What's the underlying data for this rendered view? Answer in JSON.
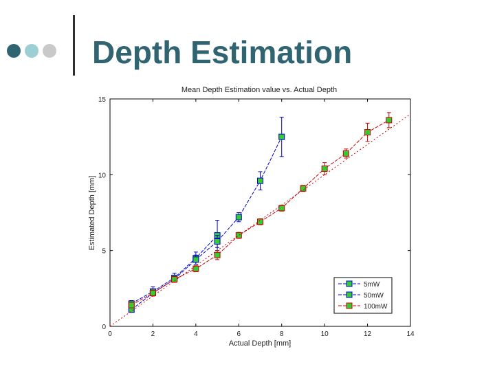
{
  "slide": {
    "title": "Depth Estimation",
    "title_color": "#2f6470",
    "dot_colors": [
      "#2f6470",
      "#9ccfd4",
      "#c9c9c9"
    ]
  },
  "chart_data": {
    "type": "line",
    "title": "Mean Depth Estimation value vs. Actual Depth",
    "xlabel": "Actual Depth [mm]",
    "ylabel": "Estimated Depth [mm]",
    "xlim": [
      0,
      14
    ],
    "ylim": [
      0,
      15
    ],
    "xticks": [
      0,
      2,
      4,
      6,
      8,
      10,
      12,
      14
    ],
    "yticks": [
      0,
      5,
      10,
      15
    ],
    "grid": false,
    "legend_position": "bottom-right",
    "marker_color": "#33cc33",
    "series": [
      {
        "name": "5mW",
        "color": "#0000cc",
        "x": [
          1,
          2,
          3,
          4,
          5
        ],
        "y": [
          1.5,
          2.3,
          3.2,
          4.5,
          6.0
        ],
        "err": [
          0.2,
          0.3,
          0.3,
          0.4,
          1.0
        ]
      },
      {
        "name": "50mW",
        "color": "#0000cc",
        "x": [
          1,
          2,
          3,
          4,
          5,
          6,
          7,
          8
        ],
        "y": [
          1.1,
          2.2,
          3.1,
          4.4,
          5.6,
          7.2,
          9.6,
          12.5
        ],
        "err": [
          0.1,
          0.2,
          0.2,
          0.3,
          0.4,
          0.3,
          0.6,
          1.3
        ]
      },
      {
        "name": "100mW",
        "color": "#cc0000",
        "x": [
          1,
          2,
          3,
          4,
          5,
          6,
          7,
          8,
          9,
          10,
          11,
          12,
          13
        ],
        "y": [
          1.4,
          2.2,
          3.1,
          3.8,
          4.7,
          6.0,
          6.9,
          7.8,
          9.1,
          10.4,
          11.4,
          12.8,
          13.6
        ],
        "err": [
          0.1,
          0.2,
          0.2,
          0.2,
          0.3,
          0.2,
          0.2,
          0.2,
          0.2,
          0.4,
          0.3,
          0.6,
          0.5
        ]
      },
      {
        "name": "",
        "color": "#cc0000",
        "style": "dotted",
        "x": [
          0,
          14
        ],
        "y": [
          0,
          14
        ]
      }
    ]
  }
}
